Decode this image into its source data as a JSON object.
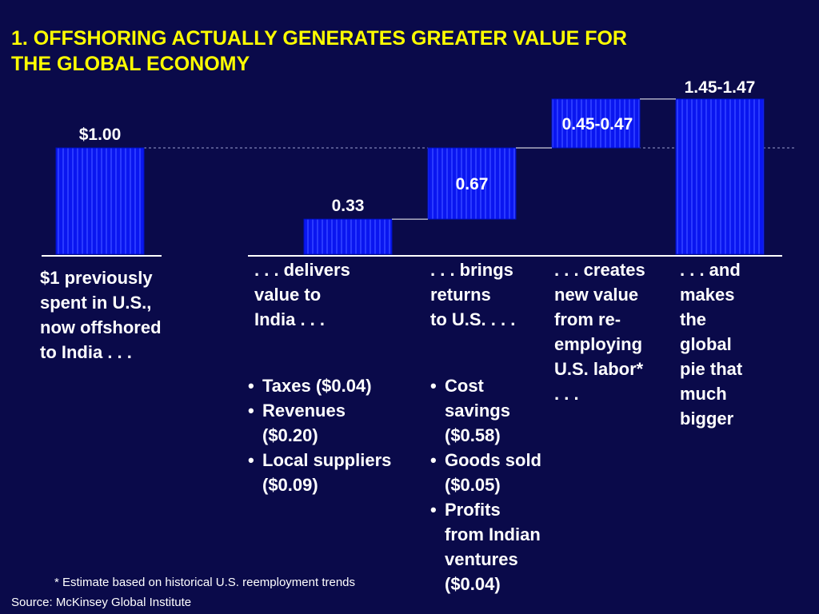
{
  "title_lines": [
    "1.  OFFSHORING ACTUALLY GENERATES GREATER VALUE FOR",
    "THE GLOBAL ECONOMY"
  ],
  "top_note": "",
  "chart_data": {
    "type": "bar",
    "title": "",
    "categories": [
      "$1 previously spent in U.S., now offshored to India",
      "delivers value to India",
      "brings returns to U.S.",
      "creates new value from re-employing U.S. labor",
      "and makes the global pie that much bigger"
    ],
    "bars": [
      {
        "label": "$1.00",
        "base": 0,
        "top": 1.0
      },
      {
        "label": "0.33",
        "base": 0,
        "top": 0.33
      },
      {
        "label": "0.67",
        "base": 0.33,
        "top": 1.0
      },
      {
        "label": "0.45-0.47",
        "base": 1.0,
        "top": 1.46
      },
      {
        "label": "1.45-1.47",
        "base": 0,
        "top": 1.46
      }
    ],
    "reference_value": 1.0,
    "colors": {
      "bar": "#0a16f0",
      "bar_stripe": "#2836ff",
      "background": "#0a0a4a"
    }
  },
  "descriptions": [
    [
      "$1 previously",
      "spent in U.S.,",
      "now offshored",
      "to India . . ."
    ],
    [
      ". . . delivers",
      "value to",
      "India . . ."
    ],
    [
      ". . . brings",
      "returns",
      "to U.S. . . ."
    ],
    [
      ". . . creates",
      "new value",
      "from re-",
      "employing",
      "U.S. labor*",
      ". . ."
    ],
    [
      ". . . and",
      "makes",
      "the",
      "global",
      "pie that",
      "much",
      "bigger"
    ]
  ],
  "bullets_india": [
    [
      "Taxes ($0.04)"
    ],
    [
      "Revenues",
      "($0.20)"
    ],
    [
      "Local suppliers",
      "($0.09)"
    ]
  ],
  "bullets_us": [
    [
      "Cost",
      "savings",
      "($0.58)"
    ],
    [
      "Goods sold",
      "($0.05)"
    ],
    [
      "Profits",
      "from Indian",
      "ventures",
      "($0.04)"
    ]
  ],
  "footnote": "* Estimate based on historical U.S. reemployment trends",
  "source": "Source: McKinsey Global Institute",
  "page_number": ""
}
